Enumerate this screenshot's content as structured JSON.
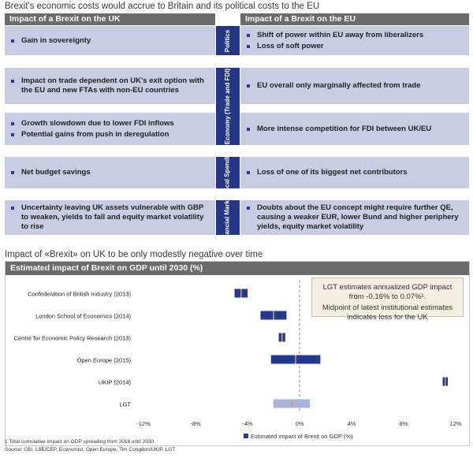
{
  "page": {
    "heading": "Brexit's economic costs would accrue to Britain and its political costs to the EU",
    "chart_heading": "Impact of «Brexit» on UK to be only modestly negative over time"
  },
  "table": {
    "left_header": "Impact of a Brexit on the UK",
    "right_header": "Impact of a Brexit on the EU",
    "rows": [
      {
        "category": "Politics",
        "uk": [
          "Gain in sovereignty"
        ],
        "eu": [
          "Shift of power within EU away from liberalizers",
          "Loss of soft power"
        ]
      },
      {
        "category": "Economy (Trade and FDI)",
        "uk": [
          "Impact on trade dependent on UK's exit option with the EU and new FTAs with non-EU countries"
        ],
        "eu": [
          "EU overall only marginally affected from trade"
        ]
      },
      {
        "category": "",
        "uk": [
          "Growth slowdown due to lower FDI inflows",
          "Potential gains from push in deregulation"
        ],
        "eu": [
          "More intense competition for FDI between UK/EU"
        ]
      },
      {
        "category": "Fiscal Spending",
        "uk": [
          "Net budget savings"
        ],
        "eu": [
          "Loss of one of its biggest net contributors"
        ]
      },
      {
        "category": "Financial Markets",
        "uk": [
          "Uncertainty leaving UK assets vulnerable with GBP to weaken, yields to fall and equity market volatility to rise"
        ],
        "eu": [
          "Doubts about the EU concept might require further QE, causing a weaker EUR, lower Bund and higher periphery yields, equity market volatility"
        ]
      }
    ]
  },
  "chart_data": {
    "type": "range-bar",
    "title": "Estimated impact of Brexit on GDP until 2030 (%)",
    "categories": [
      "Confederation of British Industry (2013)",
      "London School of Economics (2014)",
      "Centre for Economic Policy Research (2013)",
      "Open Europe (2015)",
      "UKIP (2014)",
      "LGT"
    ],
    "ranges": [
      [
        -5.0,
        -4.0
      ],
      [
        -3.0,
        -1.0
      ],
      [
        -1.6,
        -1.1
      ],
      [
        -2.2,
        1.6
      ],
      [
        11.0,
        11.4
      ],
      [
        -2.0,
        0.8
      ]
    ],
    "midpoints": [
      -4.5,
      -2.0,
      -1.35,
      -0.3,
      11.2,
      -0.6
    ],
    "xlim": [
      -12,
      12
    ],
    "xticks": [
      -12,
      -8,
      -4,
      0,
      4,
      8,
      12
    ],
    "tick_labels": [
      "-12%",
      "-8%",
      "-4%",
      "0%",
      "4%",
      "8%",
      "12%"
    ],
    "legend": "Estimated impact of Brexit on GDP (%)",
    "colors": {
      "bar": "#243a8c",
      "lgt_bar": "#a9b4d8",
      "midpoint": "#c9a27a",
      "zero_line": "#888888"
    },
    "note_lines": [
      "LGT estimates annualized GDP impact from -0.16% to 0.07%¹.",
      "Midpoint of latest institutional estimates indicates loss for the UK"
    ]
  },
  "footnotes": {
    "note1": "1  Total cumulative impact on GDP spreading from 2018 until 2030",
    "source": "Source: CBI, LSE/CEP, Economist, Open Europe, Tim Congdon/UKIP, LGT"
  }
}
